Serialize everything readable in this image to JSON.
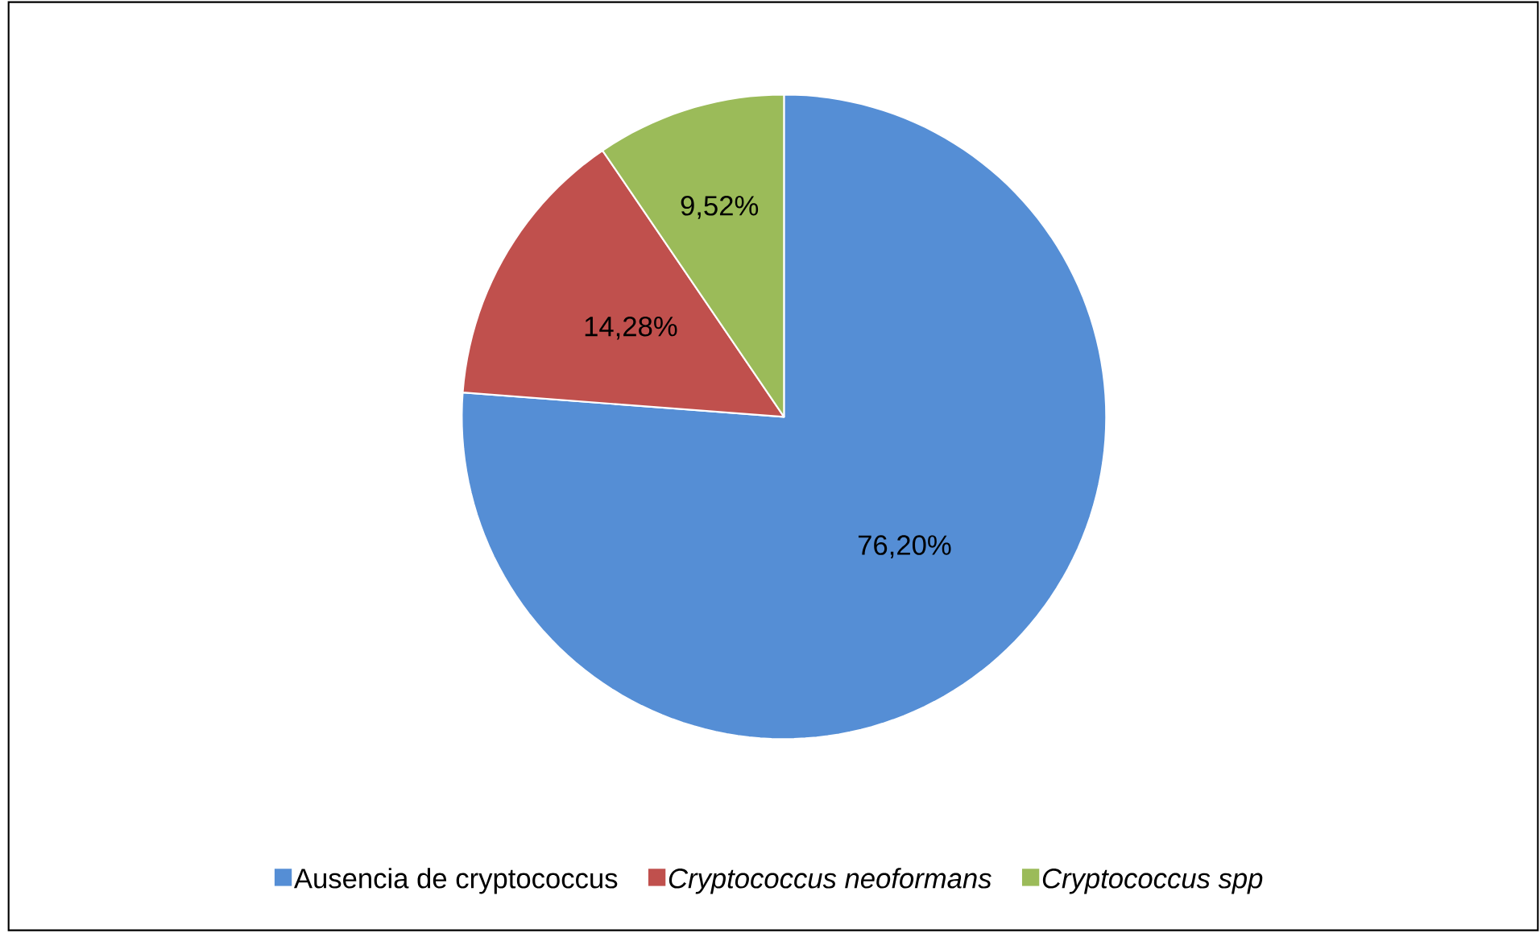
{
  "chart_data": {
    "type": "pie",
    "categories": [
      "Ausencia de cryptococcus",
      "*Cryptococcus neoformans*",
      "*Cryptococcus spp*"
    ],
    "values": [
      76.2,
      14.28,
      9.52
    ],
    "value_labels": [
      "76,20%",
      "14,28%",
      "9,52%"
    ],
    "colors": [
      "#558ed5",
      "#c0504d",
      "#9bbb59"
    ],
    "legend": "bottom"
  }
}
